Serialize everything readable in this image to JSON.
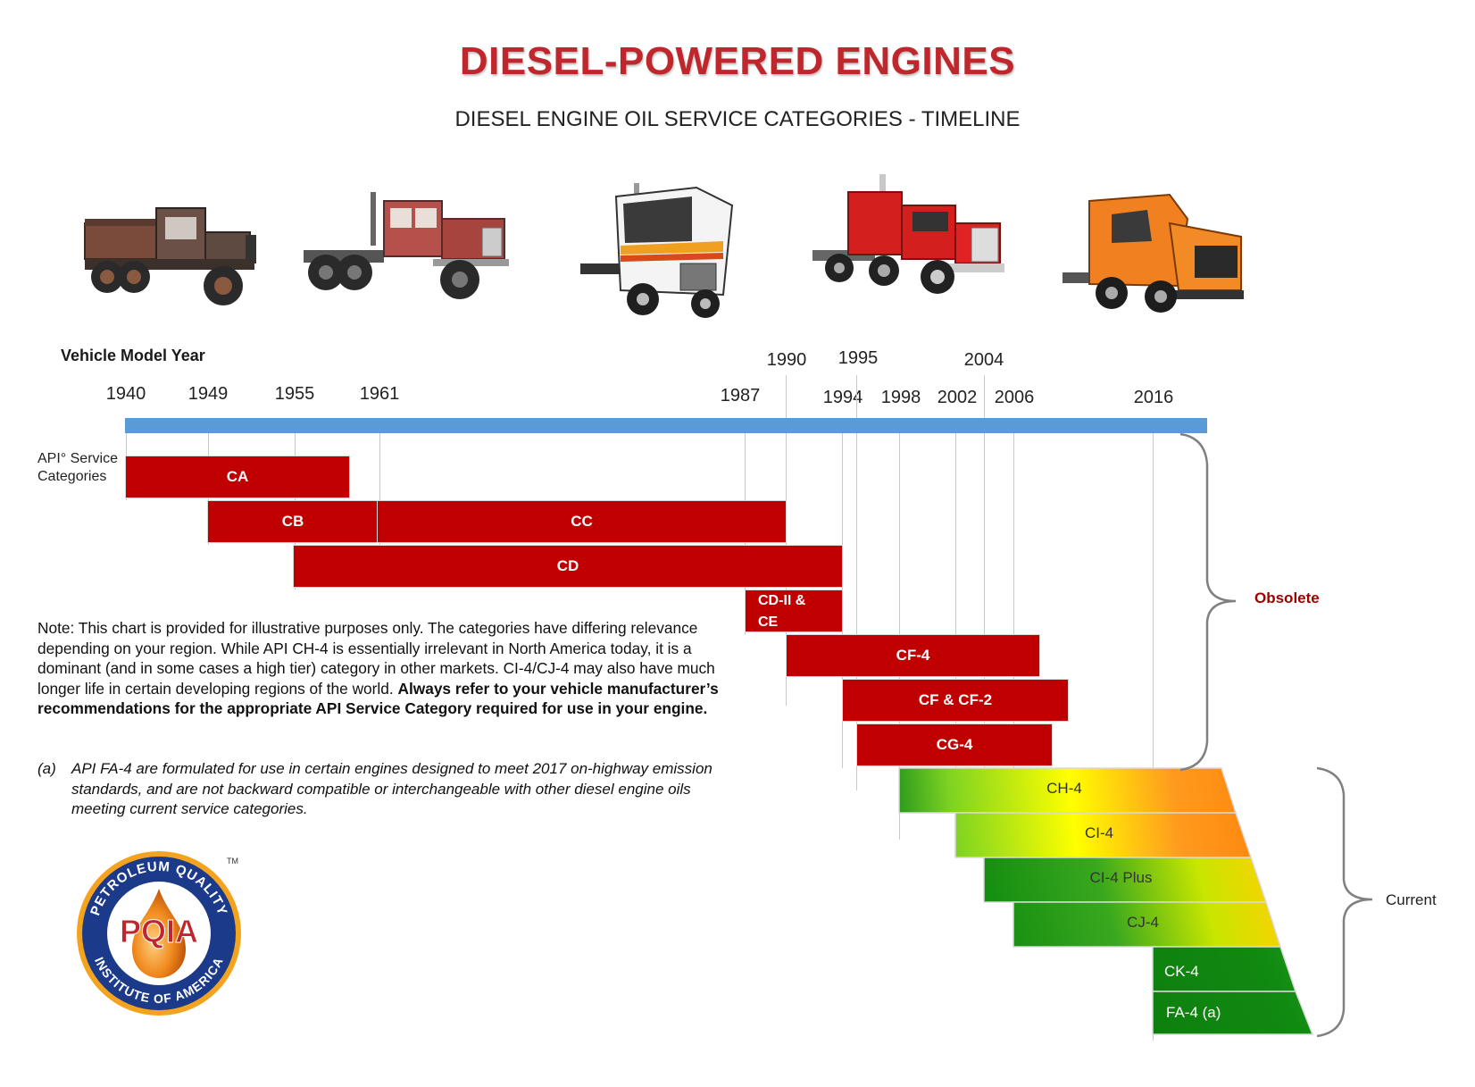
{
  "title": "DIESEL-POWERED ENGINES",
  "subtitle": "DIESEL ENGINE OIL SERVICE CATEGORIES - TIMELINE",
  "vehicle_model_year_label": "Vehicle Model Year",
  "years": [
    "1940",
    "1949",
    "1955",
    "1961",
    "1987",
    "1990",
    "1994",
    "1995",
    "1998",
    "2002",
    "2004",
    "2006",
    "2016"
  ],
  "api_label_line1": "API° Service",
  "api_label_line2": "Categories",
  "categories": {
    "ca": "CA",
    "cb": "CB",
    "cc": "CC",
    "cd": "CD",
    "cd2_line1": "CD-II &",
    "cd2_line2": "CE",
    "cf4": "CF-4",
    "cf": "CF & CF-2",
    "cg4": "CG-4",
    "ch4": "CH-4",
    "ci4": "CI-4",
    "ci4plus": "CI-4 Plus",
    "cj4": "CJ-4",
    "ck4": "CK-4",
    "fa4": "FA-4 (a)"
  },
  "obsolete_label": "Obsolete",
  "current_label": "Current",
  "note": {
    "text": "Note: This chart is provided for illustrative purposes only. The categories have differing relevance depending on your region.  While API CH-4 is essentially irrelevant in North America today, it is a dominant (and in some cases a high tier) category in other markets. CI-4/CJ-4 may also have much longer life in certain developing regions of the world.",
    "bold": "Always refer to your vehicle  manufacturer’s recommendations for the appropriate API Service Category required for use in your engine."
  },
  "footnote": {
    "marker": "(a)",
    "text": "API FA-4 are formulated for use in certain engines designed to meet 2017 on-highway emission standards, and are not backward compatible or interchangeable with other diesel engine oils meeting current service categories."
  },
  "logo": {
    "top_text": "PETROLEUM QUALITY",
    "bottom_text": "INSTITUTE OF AMERICA",
    "center_text": "PQIA",
    "tm": "TM"
  },
  "colors": {
    "title": "#c0272d",
    "obsolete_bar": "#c00000",
    "timeline_bar": "#5b9bd5",
    "current_green": "#1f9a1f",
    "current_yellow": "#ffff00",
    "current_orange": "#ff8c1a"
  },
  "icons": [
    "vintage-dump-truck-icon",
    "red-vintage-tractor-icon",
    "cabover-truck-icon",
    "red-semi-truck-icon",
    "orange-semi-truck-icon"
  ]
}
